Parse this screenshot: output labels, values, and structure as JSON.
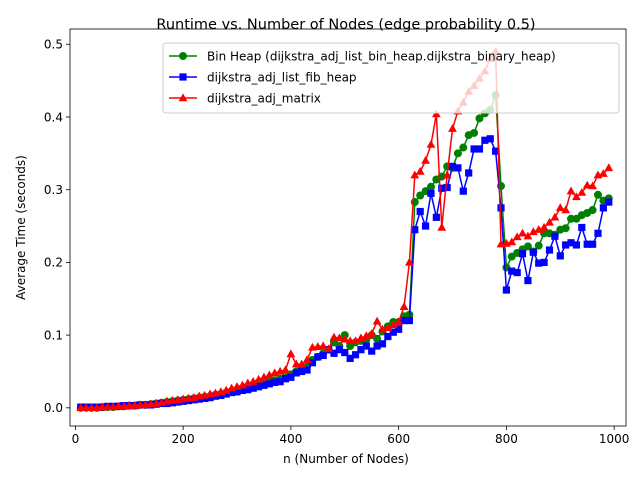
{
  "chart_data": {
    "type": "line",
    "title": "Runtime vs. Number of Nodes (edge probability 0.5)",
    "xlabel": "n (Number of Nodes)",
    "ylabel": "Average Time (seconds)",
    "xlim": [
      -10,
      1022
    ],
    "ylim": [
      -0.025,
      0.521
    ],
    "xticks": [
      0,
      200,
      400,
      600,
      800,
      1000
    ],
    "yticks": [
      0.0,
      0.1,
      0.2,
      0.3,
      0.4,
      0.5
    ],
    "xtick_labels": [
      "0",
      "200",
      "400",
      "600",
      "800",
      "1000"
    ],
    "ytick_labels": [
      "0.0",
      "0.1",
      "0.2",
      "0.3",
      "0.4",
      "0.5"
    ],
    "grid": false,
    "legend_position": "upper right",
    "x": [
      10,
      20,
      30,
      40,
      50,
      60,
      70,
      80,
      90,
      100,
      110,
      120,
      130,
      140,
      150,
      160,
      170,
      180,
      190,
      200,
      210,
      220,
      230,
      240,
      250,
      260,
      270,
      280,
      290,
      300,
      310,
      320,
      330,
      340,
      350,
      360,
      370,
      380,
      390,
      400,
      410,
      420,
      430,
      440,
      450,
      460,
      470,
      480,
      490,
      500,
      510,
      520,
      530,
      540,
      550,
      560,
      570,
      580,
      590,
      600,
      610,
      620,
      630,
      640,
      650,
      660,
      670,
      680,
      690,
      700,
      710,
      720,
      730,
      740,
      750,
      760,
      770,
      780,
      790,
      800,
      810,
      820,
      830,
      840,
      850,
      860,
      870,
      880,
      890,
      900,
      910,
      920,
      930,
      940,
      950,
      960,
      970,
      980,
      990
    ],
    "series": [
      {
        "name": "Bin Heap (dijkstra_adj_list_bin_heap.dijkstra_binary_heap)",
        "color": "#008000",
        "marker": "circle",
        "values": [
          0.0,
          0.0,
          0.0,
          0.0,
          0.001,
          0.001,
          0.001,
          0.002,
          0.002,
          0.003,
          0.003,
          0.004,
          0.004,
          0.005,
          0.006,
          0.007,
          0.008,
          0.009,
          0.01,
          0.011,
          0.012,
          0.013,
          0.014,
          0.015,
          0.016,
          0.018,
          0.019,
          0.021,
          0.023,
          0.025,
          0.026,
          0.028,
          0.03,
          0.032,
          0.034,
          0.036,
          0.038,
          0.04,
          0.042,
          0.046,
          0.05,
          0.053,
          0.057,
          0.066,
          0.07,
          0.075,
          0.08,
          0.09,
          0.085,
          0.1,
          0.085,
          0.09,
          0.092,
          0.094,
          0.1,
          0.095,
          0.105,
          0.112,
          0.118,
          0.118,
          0.126,
          0.128,
          0.283,
          0.292,
          0.298,
          0.304,
          0.314,
          0.318,
          0.332,
          0.33,
          0.35,
          0.358,
          0.375,
          0.378,
          0.398,
          0.405,
          0.41,
          0.43,
          0.305,
          0.193,
          0.208,
          0.213,
          0.218,
          0.222,
          0.215,
          0.223,
          0.24,
          0.24,
          0.238,
          0.245,
          0.247,
          0.26,
          0.26,
          0.265,
          0.268,
          0.272,
          0.293,
          0.285,
          0.288
        ]
      },
      {
        "name": "dijkstra_adj_list_fib_heap",
        "color": "#0000ff",
        "marker": "square",
        "values": [
          0.001,
          0.001,
          0.001,
          0.001,
          0.001,
          0.002,
          0.002,
          0.002,
          0.003,
          0.003,
          0.003,
          0.004,
          0.004,
          0.004,
          0.005,
          0.006,
          0.006,
          0.007,
          0.008,
          0.009,
          0.01,
          0.011,
          0.012,
          0.013,
          0.014,
          0.016,
          0.017,
          0.019,
          0.021,
          0.022,
          0.024,
          0.025,
          0.027,
          0.029,
          0.031,
          0.033,
          0.035,
          0.036,
          0.04,
          0.042,
          0.048,
          0.05,
          0.052,
          0.062,
          0.07,
          0.072,
          0.08,
          0.075,
          0.08,
          0.076,
          0.068,
          0.073,
          0.08,
          0.085,
          0.078,
          0.085,
          0.088,
          0.098,
          0.104,
          0.108,
          0.12,
          0.12,
          0.245,
          0.27,
          0.25,
          0.295,
          0.262,
          0.302,
          0.303,
          0.332,
          0.33,
          0.298,
          0.323,
          0.356,
          0.356,
          0.368,
          0.37,
          0.353,
          0.275,
          0.162,
          0.188,
          0.186,
          0.212,
          0.175,
          0.214,
          0.199,
          0.2,
          0.217,
          0.236,
          0.209,
          0.224,
          0.227,
          0.224,
          0.248,
          0.225,
          0.225,
          0.24,
          0.275,
          0.283
        ]
      },
      {
        "name": "dijkstra_adj_matrix",
        "color": "#ff0000",
        "marker": "triangle",
        "values": [
          0.0,
          0.0,
          0.0,
          0.0,
          0.001,
          0.001,
          0.001,
          0.002,
          0.002,
          0.003,
          0.003,
          0.004,
          0.004,
          0.005,
          0.006,
          0.007,
          0.009,
          0.01,
          0.011,
          0.012,
          0.013,
          0.014,
          0.016,
          0.017,
          0.019,
          0.02,
          0.022,
          0.024,
          0.027,
          0.029,
          0.031,
          0.034,
          0.036,
          0.039,
          0.042,
          0.045,
          0.048,
          0.05,
          0.052,
          0.074,
          0.06,
          0.06,
          0.066,
          0.083,
          0.084,
          0.085,
          0.081,
          0.097,
          0.096,
          0.094,
          0.092,
          0.092,
          0.096,
          0.099,
          0.102,
          0.119,
          0.108,
          0.11,
          0.114,
          0.118,
          0.139,
          0.2,
          0.32,
          0.325,
          0.34,
          0.362,
          0.404,
          0.248,
          0.32,
          0.384,
          0.408,
          0.42,
          0.435,
          0.443,
          0.453,
          0.463,
          0.48,
          0.49,
          0.225,
          0.226,
          0.228,
          0.235,
          0.24,
          0.236,
          0.242,
          0.245,
          0.248,
          0.255,
          0.262,
          0.275,
          0.272,
          0.298,
          0.29,
          0.296,
          0.306,
          0.305,
          0.32,
          0.322,
          0.33
        ]
      }
    ]
  }
}
